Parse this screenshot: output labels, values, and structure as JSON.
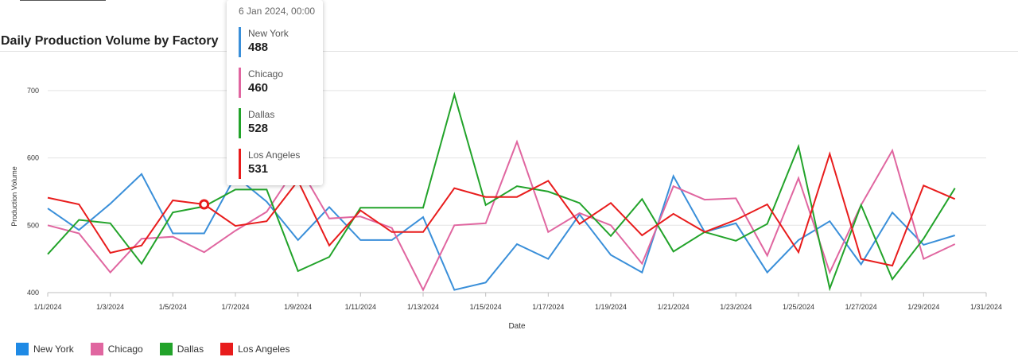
{
  "chart_data": {
    "type": "line",
    "title": "Daily Production Volume by Factory",
    "xlabel": "Date",
    "ylabel": "Production Volume",
    "ylim": [
      400,
      740
    ],
    "yticks": [
      400,
      500,
      600,
      700
    ],
    "xlim": [
      "2024-01-01",
      "2024-01-31"
    ],
    "xtick_labels": [
      "1/1/2024",
      "1/3/2024",
      "1/5/2024",
      "1/7/2024",
      "1/9/2024",
      "1/11/2024",
      "1/13/2024",
      "1/15/2024",
      "1/17/2024",
      "1/19/2024",
      "1/21/2024",
      "1/23/2024",
      "1/25/2024",
      "1/27/2024",
      "1/29/2024",
      "1/31/2024"
    ],
    "grid": true,
    "legend_position": "bottom-left",
    "x": [
      "2024-01-01",
      "2024-01-02",
      "2024-01-03",
      "2024-01-04",
      "2024-01-05",
      "2024-01-06",
      "2024-01-07",
      "2024-01-08",
      "2024-01-09",
      "2024-01-10",
      "2024-01-11",
      "2024-01-12",
      "2024-01-13",
      "2024-01-14",
      "2024-01-15",
      "2024-01-16",
      "2024-01-17",
      "2024-01-18",
      "2024-01-19",
      "2024-01-20",
      "2024-01-21",
      "2024-01-22",
      "2024-01-23",
      "2024-01-24",
      "2024-01-25",
      "2024-01-26",
      "2024-01-27",
      "2024-01-28",
      "2024-01-29",
      "2024-01-30"
    ],
    "series": [
      {
        "name": "New York",
        "color": "#3a8fd9",
        "values": [
          525,
          493,
          532,
          576,
          488,
          488,
          573,
          535,
          478,
          527,
          478,
          478,
          512,
          404,
          415,
          472,
          450,
          516,
          456,
          430,
          573,
          490,
          503,
          430,
          478,
          506,
          442,
          519,
          471,
          485
        ]
      },
      {
        "name": "Chicago",
        "color": "#e066a0",
        "values": [
          500,
          488,
          430,
          480,
          483,
          460,
          492,
          520,
          590,
          510,
          513,
          496,
          404,
          500,
          503,
          624,
          490,
          518,
          500,
          443,
          558,
          538,
          540,
          455,
          570,
          430,
          530,
          611,
          450,
          472
        ]
      },
      {
        "name": "Dallas",
        "color": "#22a32a",
        "values": [
          457,
          508,
          503,
          443,
          519,
          528,
          553,
          553,
          432,
          453,
          526,
          526,
          526,
          694,
          530,
          558,
          550,
          533,
          484,
          539,
          461,
          490,
          477,
          502,
          617,
          406,
          530,
          420,
          480,
          555
        ]
      },
      {
        "name": "Los Angeles",
        "color": "#e81c1c",
        "values": [
          541,
          531,
          459,
          470,
          537,
          531,
          499,
          506,
          566,
          470,
          522,
          490,
          490,
          555,
          542,
          542,
          566,
          502,
          533,
          485,
          517,
          490,
          508,
          531,
          460,
          606,
          450,
          440,
          559,
          539
        ]
      }
    ]
  },
  "tooltip": {
    "date": "6 Jan 2024, 00:00",
    "entries": [
      {
        "name": "New York",
        "value": "488"
      },
      {
        "name": "Chicago",
        "value": "460"
      },
      {
        "name": "Dallas",
        "value": "528"
      },
      {
        "name": "Los Angeles",
        "value": "531"
      }
    ]
  }
}
